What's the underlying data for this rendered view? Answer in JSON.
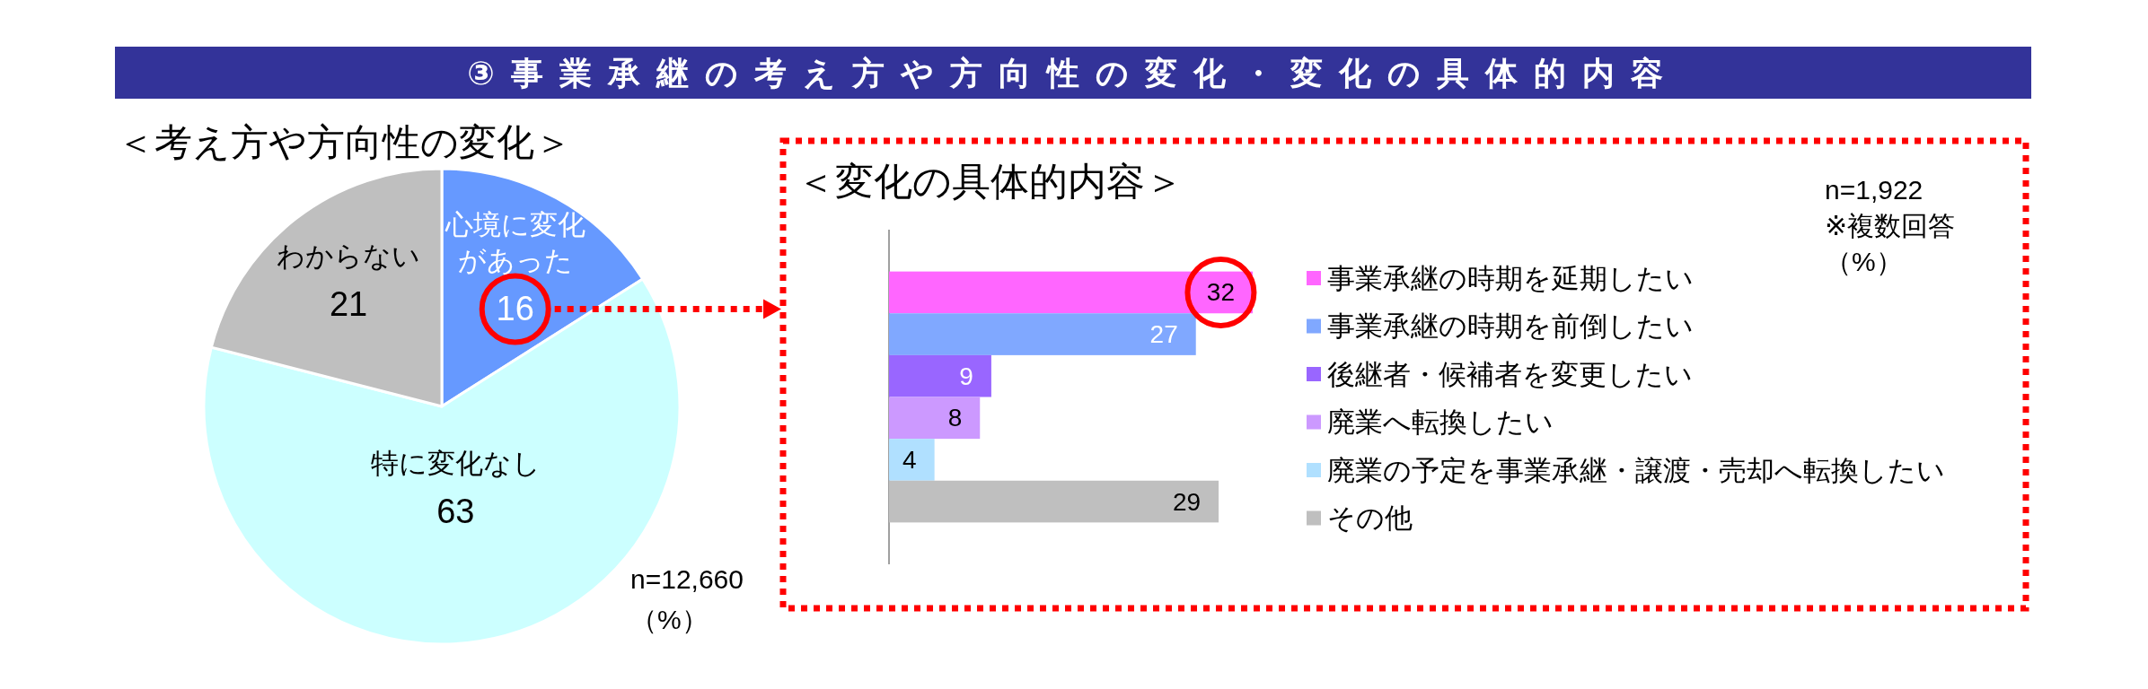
{
  "chart_data": [
    {
      "type": "other",
      "title": "③事業承継の考え方や方向性の変化・変化の具体的内容"
    },
    {
      "type": "pie",
      "title": "＜考え方や方向性の変化＞",
      "categories": [
        "心境に変化があった",
        "特に変化なし",
        "わからない"
      ],
      "values": [
        16,
        63,
        21
      ],
      "colors": [
        "#6699ff",
        "#ccffff",
        "#bfbfbf"
      ],
      "data_labels": true,
      "annotations": [
        "n=12,660",
        "（%）"
      ]
    },
    {
      "type": "bar",
      "orientation": "horizontal",
      "stacked": true,
      "title": "＜変化の具体的内容＞",
      "categories": [
        null,
        null,
        null,
        null,
        null,
        null
      ],
      "series": [
        {
          "name": "事業承継の時期を延期したい",
          "color": "#ff66ff",
          "values": [
            32,
            null,
            null,
            null,
            null,
            null
          ]
        },
        {
          "name": "事業承継の時期を前倒したい",
          "color": "#80a8ff",
          "values": [
            null,
            27,
            null,
            null,
            null,
            null
          ]
        },
        {
          "name": "後継者・候補者を変更したい",
          "color": "#9966ff",
          "values": [
            null,
            null,
            9,
            null,
            null,
            null
          ]
        },
        {
          "name": "廃業へ転換したい",
          "color": "#cc99ff",
          "values": [
            null,
            null,
            null,
            8,
            null,
            null
          ]
        },
        {
          "name": "廃業の予定を事業承継・譲渡・売却へ転換したい",
          "color": "#b0e0ff",
          "values": [
            null,
            null,
            null,
            null,
            4,
            null
          ]
        },
        {
          "name": "その他",
          "color": "#bfbfbf",
          "values": [
            null,
            null,
            null,
            null,
            null,
            29
          ]
        }
      ],
      "data_labels": true,
      "legend": "right",
      "annotations": [
        "n=1,922",
        "※複数回答",
        "（%）"
      ]
    }
  ]
}
